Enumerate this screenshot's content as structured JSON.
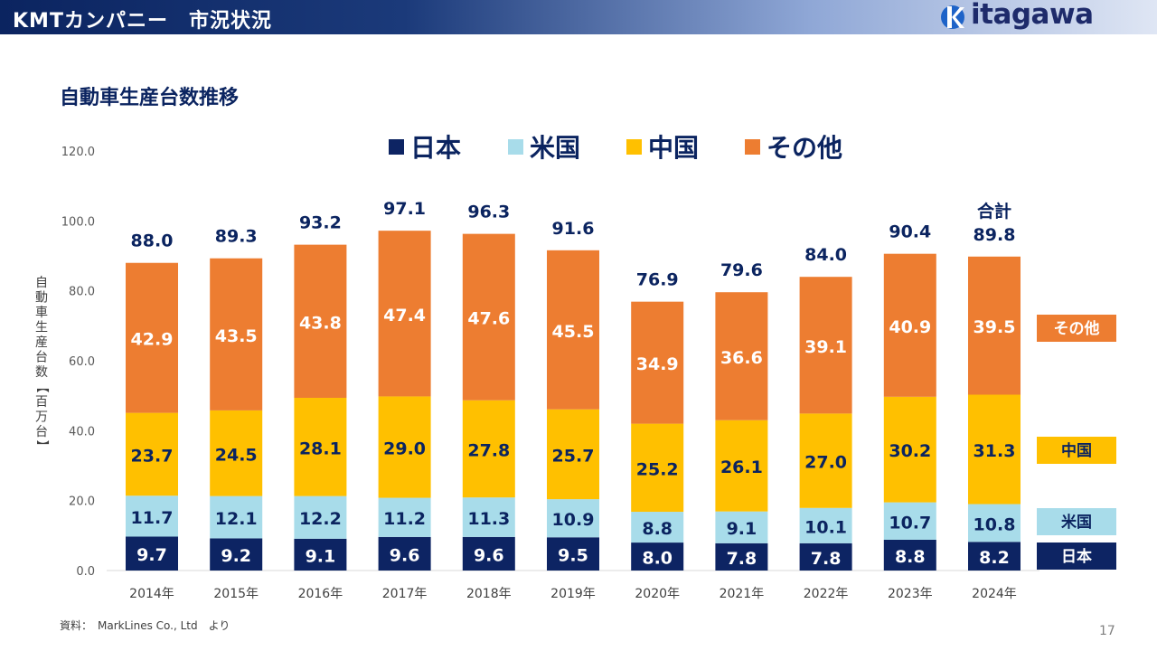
{
  "header": {
    "title": "KMTカンパニー　市況状況",
    "logo_text": "itagawa"
  },
  "subtitle": "自動車生産台数推移",
  "source": "資料：　MarkLines Co., Ltd　より",
  "page_number": "17",
  "colors": {
    "japan": "#0d2463",
    "usa": "#a8dcea",
    "china": "#ffc000",
    "other": "#ed7d31",
    "header_dark": "#0b2460"
  },
  "chart_data": {
    "type": "bar",
    "stacked": true,
    "categories": [
      "2014年",
      "2015年",
      "2016年",
      "2017年",
      "2018年",
      "2019年",
      "2020年",
      "2021年",
      "2022年",
      "2023年",
      "2024年"
    ],
    "series": [
      {
        "name": "日本",
        "values": [
          9.7,
          9.2,
          9.1,
          9.6,
          9.6,
          9.5,
          8.0,
          7.8,
          7.8,
          8.8,
          8.2
        ]
      },
      {
        "name": "米国",
        "values": [
          11.7,
          12.1,
          12.2,
          11.2,
          11.3,
          10.9,
          8.8,
          9.1,
          10.1,
          10.7,
          10.8
        ]
      },
      {
        "name": "中国",
        "values": [
          23.7,
          24.5,
          28.1,
          29.0,
          27.8,
          25.7,
          25.2,
          26.1,
          27.0,
          30.2,
          31.3
        ]
      },
      {
        "name": "その他",
        "values": [
          42.9,
          43.5,
          43.8,
          47.4,
          47.6,
          45.5,
          34.9,
          36.6,
          39.1,
          40.9,
          39.5
        ]
      }
    ],
    "totals": [
      "88.0",
      "89.3",
      "93.2",
      "97.1",
      "96.3",
      "91.6",
      "76.9",
      "79.6",
      "84.0",
      "90.4",
      "89.8"
    ],
    "total_label": "合計",
    "ylabel": "自動車生産台数【百万台】",
    "xlabel": "",
    "ylim": [
      0,
      120
    ],
    "y_ticks": [
      "0.0",
      "20.0",
      "40.0",
      "60.0",
      "80.0",
      "100.0",
      "120.0"
    ],
    "legend_position": "top",
    "grid": false,
    "right_labels": [
      "その他",
      "中国",
      "米国",
      "日本"
    ]
  }
}
